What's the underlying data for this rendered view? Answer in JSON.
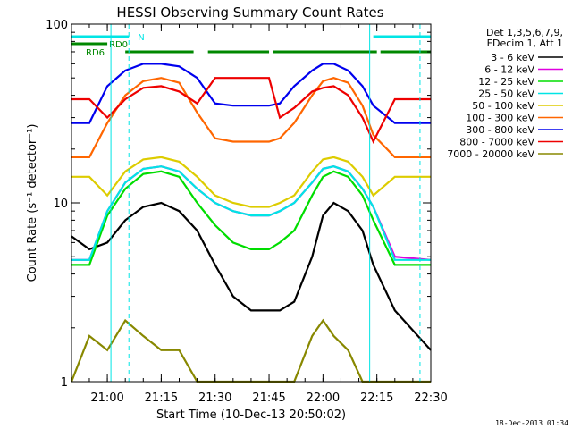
{
  "chart_data": {
    "type": "line",
    "title": "HESSI Observing Summary Count Rates",
    "xlabel": "Start Time (10-Dec-13 20:50:02)",
    "ylabel": "Count Rate (s⁻¹ detector⁻¹)",
    "yscale": "log",
    "xlim": [
      "20:50:02",
      "22:30:00"
    ],
    "ylim": [
      1,
      100
    ],
    "x_ticks": [
      "21:00",
      "21:15",
      "21:30",
      "21:45",
      "22:00",
      "22:15",
      "22:30"
    ],
    "y_ticks": [
      "1",
      "10",
      "100"
    ],
    "grid": false,
    "legend_header": [
      "Det 1,3,5,6,7,9,",
      "FDecim 1, Att 1"
    ],
    "legend_position": "right",
    "timestamp": "18-Dec-2013 01:34",
    "flags": [
      {
        "name": "N",
        "color": "#00e5e5",
        "intervals": [
          [
            "20:50:02",
            "21:06"
          ],
          [
            "22:14",
            "22:30"
          ]
        ]
      },
      {
        "name": "RD0",
        "color": "#008800",
        "intervals": [
          [
            "20:50:02",
            "21:00"
          ]
        ]
      },
      {
        "name": "RD6",
        "color": "#008800",
        "intervals": [
          [
            "21:05",
            "21:24"
          ],
          [
            "21:28",
            "21:45"
          ],
          [
            "21:46",
            "22:15"
          ],
          [
            "22:16",
            "22:30"
          ]
        ]
      }
    ],
    "vlines": [
      "21:06",
      "22:27"
    ],
    "vlines_solid": [
      "21:01",
      "22:13"
    ],
    "series": [
      {
        "name": "3 - 6 keV",
        "color": "#000000",
        "values": [
          6.5,
          5.5,
          6,
          8,
          9.5,
          10,
          9,
          7,
          4.5,
          3,
          2.5,
          2.5,
          2.5,
          2.8,
          5,
          8.5,
          10,
          9,
          7,
          4.5,
          2.5,
          1.5
        ]
      },
      {
        "name": "6 - 12 keV",
        "color": "#e000e0",
        "values": [
          4.8,
          4.8,
          9,
          13,
          15.5,
          16,
          15,
          12,
          10,
          9,
          8.5,
          8.5,
          9,
          10,
          13,
          15.5,
          16,
          15,
          12,
          9.5,
          5,
          4.8
        ]
      },
      {
        "name": "12 - 25 keV",
        "color": "#00dd00",
        "values": [
          4.5,
          4.5,
          8.5,
          12,
          14.5,
          15,
          14,
          10,
          7.5,
          6,
          5.5,
          5.5,
          6,
          7,
          11,
          14,
          15,
          14,
          11,
          8,
          4.5,
          4.5
        ]
      },
      {
        "name": "25 - 50 keV",
        "color": "#00e5e5",
        "values": [
          4.8,
          4.8,
          9,
          13,
          15.5,
          16,
          15,
          12,
          10,
          9,
          8.5,
          8.5,
          9,
          10,
          13,
          15.5,
          16,
          15,
          12,
          9.5,
          4.8,
          4.8
        ]
      },
      {
        "name": "50 - 100 keV",
        "color": "#ddcc00",
        "values": [
          14,
          14,
          11,
          15,
          17.5,
          18,
          17,
          14,
          11,
          10,
          9.5,
          9.5,
          10,
          11,
          15,
          17.5,
          18,
          17,
          14,
          11,
          14,
          14
        ]
      },
      {
        "name": "100 - 300 keV",
        "color": "#ff6600",
        "values": [
          18,
          18,
          28,
          40,
          48,
          50,
          47,
          32,
          23,
          22,
          22,
          22,
          23,
          28,
          40,
          48,
          50,
          47,
          35,
          24,
          18,
          18
        ]
      },
      {
        "name": "300 - 800 keV",
        "color": "#0000ee",
        "values": [
          28,
          28,
          45,
          55,
          60,
          60,
          58,
          50,
          36,
          35,
          35,
          35,
          36,
          45,
          55,
          60,
          60,
          55,
          45,
          35,
          28,
          28
        ]
      },
      {
        "name": "800 - 7000 keV",
        "color": "#ee0000",
        "values": [
          38,
          38,
          30,
          38,
          44,
          45,
          42,
          36,
          50,
          50,
          50,
          50,
          30,
          34,
          42,
          44,
          45,
          40,
          30,
          22,
          38,
          38
        ]
      },
      {
        "name": "7000 - 20000 keV",
        "color": "#888800",
        "values": [
          1,
          1.8,
          1.5,
          2.2,
          1.8,
          1.5,
          1.5,
          1,
          1,
          1,
          1,
          1,
          1,
          1,
          1.8,
          2.2,
          1.8,
          1.5,
          1,
          1,
          1,
          1
        ]
      }
    ],
    "x_times": [
      "20:50",
      "20:55",
      "21:00",
      "21:05",
      "21:10",
      "21:15",
      "21:20",
      "21:25",
      "21:30",
      "21:35",
      "21:40",
      "21:45",
      "21:48",
      "21:52",
      "21:57",
      "22:00",
      "22:03",
      "22:07",
      "22:11",
      "22:14",
      "22:20",
      "22:30"
    ]
  }
}
